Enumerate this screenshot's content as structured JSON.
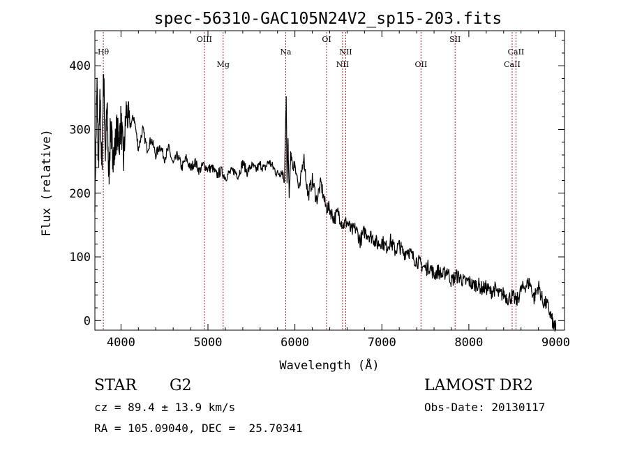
{
  "chart_data": {
    "type": "line",
    "title": "spec-56310-GAC105N24V2_sp15-203.fits",
    "xlabel": "Wavelength (Å)",
    "ylabel": "Flux (relative)",
    "xlim": [
      3700,
      9100
    ],
    "ylim": [
      -15,
      455
    ],
    "x_ticks": [
      4000,
      5000,
      6000,
      7000,
      8000,
      9000
    ],
    "y_ticks": [
      0,
      100,
      200,
      300,
      400
    ],
    "grid": false,
    "line_color": "#000000",
    "marker_color": "#b22222",
    "spectrum": {
      "x": [
        3700,
        3725,
        3740,
        3760,
        3780,
        3800,
        3820,
        3840,
        3860,
        3880,
        3900,
        3920,
        3950,
        3980,
        4000,
        4030,
        4060,
        4100,
        4150,
        4200,
        4250,
        4300,
        4350,
        4400,
        4450,
        4500,
        4550,
        4600,
        4650,
        4700,
        4750,
        4800,
        4850,
        4900,
        4950,
        5000,
        5050,
        5100,
        5150,
        5200,
        5250,
        5300,
        5350,
        5400,
        5450,
        5500,
        5550,
        5600,
        5650,
        5700,
        5750,
        5800,
        5850,
        5880,
        5900,
        5910,
        5920,
        5935,
        5950,
        5980,
        6000,
        6050,
        6100,
        6150,
        6200,
        6250,
        6300,
        6350,
        6400,
        6450,
        6500,
        6550,
        6600,
        6650,
        6700,
        6750,
        6800,
        6850,
        6900,
        6950,
        7000,
        7050,
        7100,
        7150,
        7200,
        7250,
        7300,
        7350,
        7400,
        7450,
        7500,
        7550,
        7600,
        7650,
        7700,
        7750,
        7800,
        7850,
        7900,
        7950,
        8000,
        8050,
        8100,
        8150,
        8200,
        8250,
        8300,
        8350,
        8400,
        8450,
        8500,
        8550,
        8600,
        8650,
        8700,
        8750,
        8800,
        8850,
        8900,
        8950,
        8980,
        9000
      ],
      "y": [
        200,
        370,
        240,
        350,
        230,
        395,
        260,
        340,
        220,
        305,
        270,
        255,
        300,
        280,
        315,
        250,
        330,
        305,
        320,
        270,
        300,
        270,
        285,
        260,
        275,
        255,
        270,
        245,
        260,
        240,
        255,
        238,
        250,
        235,
        245,
        238,
        240,
        228,
        235,
        225,
        232,
        235,
        228,
        248,
        233,
        243,
        236,
        245,
        238,
        250,
        240,
        230,
        235,
        220,
        350,
        210,
        285,
        190,
        260,
        240,
        250,
        200,
        260,
        195,
        220,
        190,
        215,
        180,
        175,
        160,
        170,
        150,
        155,
        140,
        145,
        125,
        140,
        135,
        130,
        120,
        125,
        115,
        125,
        110,
        118,
        105,
        112,
        100,
        95,
        88,
        82,
        85,
        72,
        78,
        70,
        80,
        62,
        70,
        68,
        60,
        62,
        55,
        58,
        50,
        52,
        45,
        50,
        40,
        42,
        35,
        38,
        30,
        48,
        55,
        60,
        35,
        55,
        30,
        25,
        5,
        -12,
        -8
      ]
    },
    "line_markers": [
      {
        "label": "Hθ",
        "x": 3797,
        "row": 1
      },
      {
        "label": "OIII",
        "x": 4959,
        "row": 0
      },
      {
        "label": "Mg",
        "x": 5175,
        "row": 2
      },
      {
        "label": "Na",
        "x": 5894,
        "row": 1
      },
      {
        "label": "OI",
        "x": 6364,
        "row": 0
      },
      {
        "label": "NII",
        "x": 6548,
        "row": 2
      },
      {
        "label": "NII",
        "x": 6584,
        "row": 1
      },
      {
        "label": "OII",
        "x": 7450,
        "row": 2
      },
      {
        "label": "SII",
        "x": 7842,
        "row": 0
      },
      {
        "label": "CaII",
        "x": 8498,
        "row": 2
      },
      {
        "label": "CaII",
        "x": 8542,
        "row": 1
      }
    ]
  },
  "info": {
    "object_class": "STAR",
    "subclass": "G2",
    "survey": "LAMOST DR2",
    "cz_line": "cz = 89.4 ± 13.9 km/s",
    "obs_date": "Obs-Date: 20130117",
    "radec_line": "RA = 105.09040, DEC =  25.70341"
  }
}
